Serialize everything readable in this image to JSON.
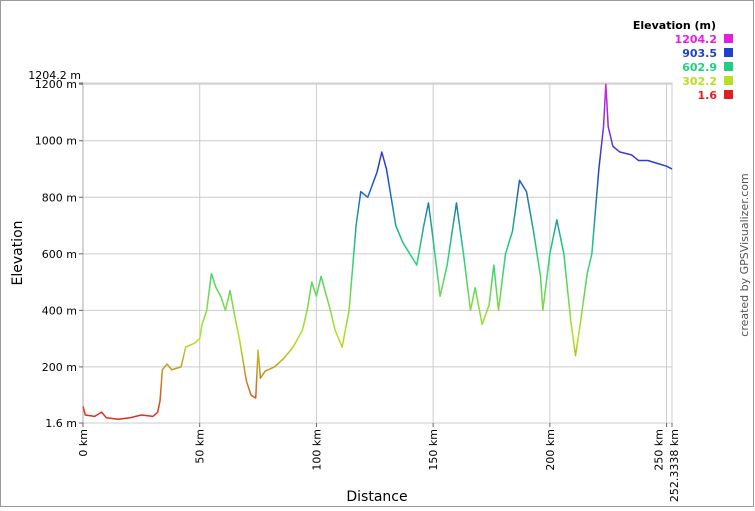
{
  "chart_data": {
    "type": "line",
    "y_label": "Elevation",
    "x_label": "Distance",
    "credit": "created by GPSVisualizer.com",
    "legend_title": "Elevation (m)",
    "color_scale": [
      {
        "value": 1204.2,
        "color": "#e020e0"
      },
      {
        "value": 903.5,
        "color": "#2040d0"
      },
      {
        "value": 602.9,
        "color": "#20d080"
      },
      {
        "value": 302.2,
        "color": "#b8e020"
      },
      {
        "value": 1.6,
        "color": "#e02020"
      }
    ],
    "xlim": [
      0,
      252.3338
    ],
    "ylim": [
      1.6,
      1204.2
    ],
    "xticks": [
      {
        "value": 0,
        "label": "0 km"
      },
      {
        "value": 50,
        "label": "50 km"
      },
      {
        "value": 100,
        "label": "100 km"
      },
      {
        "value": 150,
        "label": "150 km"
      },
      {
        "value": 200,
        "label": "200 km"
      },
      {
        "value": 250,
        "label": "250 km"
      },
      {
        "value": 252.3338,
        "label": "252.3338 km"
      }
    ],
    "yticks": [
      {
        "value": 1.6,
        "label": "1.6 m"
      },
      {
        "value": 200,
        "label": "200 m"
      },
      {
        "value": 400,
        "label": "400 m"
      },
      {
        "value": 600,
        "label": "600 m"
      },
      {
        "value": 800,
        "label": "800 m"
      },
      {
        "value": 1000,
        "label": "1000 m"
      },
      {
        "value": 1200,
        "label": "1200 m"
      },
      {
        "value": 1204.2,
        "label": "1204.2 m"
      }
    ],
    "grid": true,
    "x": [
      0,
      1,
      5,
      8,
      10,
      15,
      20,
      25,
      30,
      32,
      33,
      34,
      36,
      38,
      42,
      44,
      48,
      50,
      51,
      53,
      55,
      57,
      59,
      61,
      63,
      65,
      67,
      68,
      70,
      72,
      74,
      75,
      76,
      78,
      82,
      86,
      90,
      94,
      96,
      98,
      100,
      102,
      104,
      106,
      108,
      111,
      114,
      117,
      119,
      122,
      126,
      128,
      130,
      134,
      137,
      140,
      143,
      146,
      148,
      150,
      153,
      156,
      160,
      163,
      166,
      168,
      171,
      174,
      176,
      178,
      181,
      184,
      187,
      190,
      193,
      196,
      197,
      200,
      203,
      206,
      209,
      211,
      213,
      216,
      218,
      221,
      223,
      224,
      225,
      227,
      230,
      235,
      238,
      242,
      246,
      250,
      252.3338
    ],
    "values": [
      60,
      30,
      25,
      40,
      20,
      15,
      20,
      30,
      25,
      40,
      80,
      190,
      210,
      190,
      200,
      270,
      285,
      300,
      350,
      400,
      530,
      480,
      450,
      400,
      470,
      380,
      300,
      250,
      150,
      100,
      90,
      260,
      160,
      185,
      200,
      230,
      270,
      330,
      400,
      500,
      450,
      520,
      460,
      400,
      330,
      270,
      400,
      700,
      820,
      800,
      890,
      960,
      900,
      700,
      640,
      600,
      560,
      700,
      780,
      650,
      450,
      560,
      780,
      600,
      400,
      480,
      350,
      420,
      560,
      400,
      600,
      680,
      860,
      820,
      680,
      520,
      400,
      600,
      720,
      600,
      360,
      240,
      350,
      530,
      600,
      900,
      1050,
      1200,
      1050,
      980,
      960,
      950,
      930,
      930,
      920,
      910,
      900
    ]
  }
}
